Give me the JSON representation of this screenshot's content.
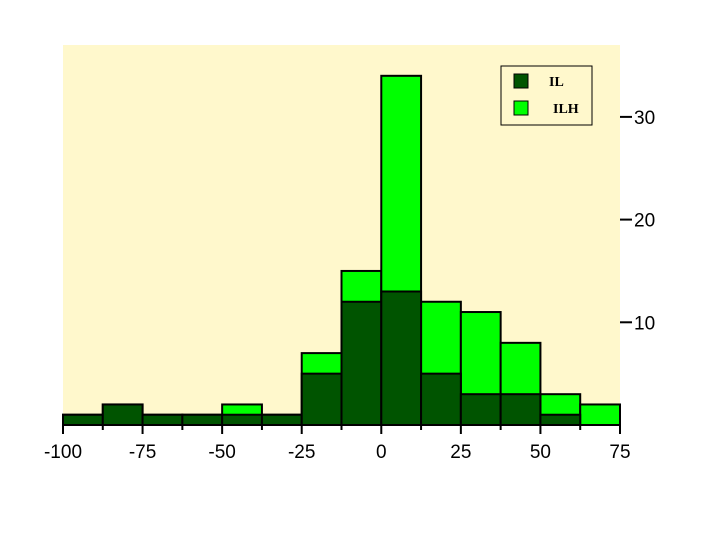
{
  "chart_data": {
    "type": "bar",
    "title": "",
    "xlabel": "",
    "ylabel": "",
    "colors": {
      "plot_background": "#FFF8CC",
      "IL": "#005400",
      "ILH": "#00FF00",
      "border": "#000000"
    },
    "legend_position": "top-right",
    "grid": false,
    "bin_edges": [
      -100,
      -87.5,
      -75,
      -62.5,
      -50,
      -37.5,
      -25,
      -12.5,
      0,
      12.5,
      25,
      37.5,
      50,
      62.5,
      75
    ],
    "series": [
      {
        "name": "IL",
        "values": [
          1,
          2,
          1,
          1,
          1,
          1,
          5,
          12,
          13,
          5,
          3,
          3,
          1,
          0
        ]
      },
      {
        "name": "ILH",
        "values": [
          1,
          2,
          1,
          1,
          2,
          1,
          7,
          15,
          34,
          12,
          11,
          8,
          3,
          2
        ]
      }
    ],
    "xlim": [
      -100,
      75
    ],
    "ylim": [
      0,
      37
    ],
    "x_ticks": [
      -100,
      -75,
      -50,
      -25,
      0,
      25,
      50,
      75
    ],
    "x_tick_labels": [
      "-100",
      "-75",
      "-50",
      "-25",
      "0",
      "25",
      "50",
      "75"
    ],
    "y_ticks": [
      10,
      20,
      30
    ],
    "y_tick_labels": [
      "10",
      "20",
      "30"
    ],
    "y_axis_side": "right"
  }
}
